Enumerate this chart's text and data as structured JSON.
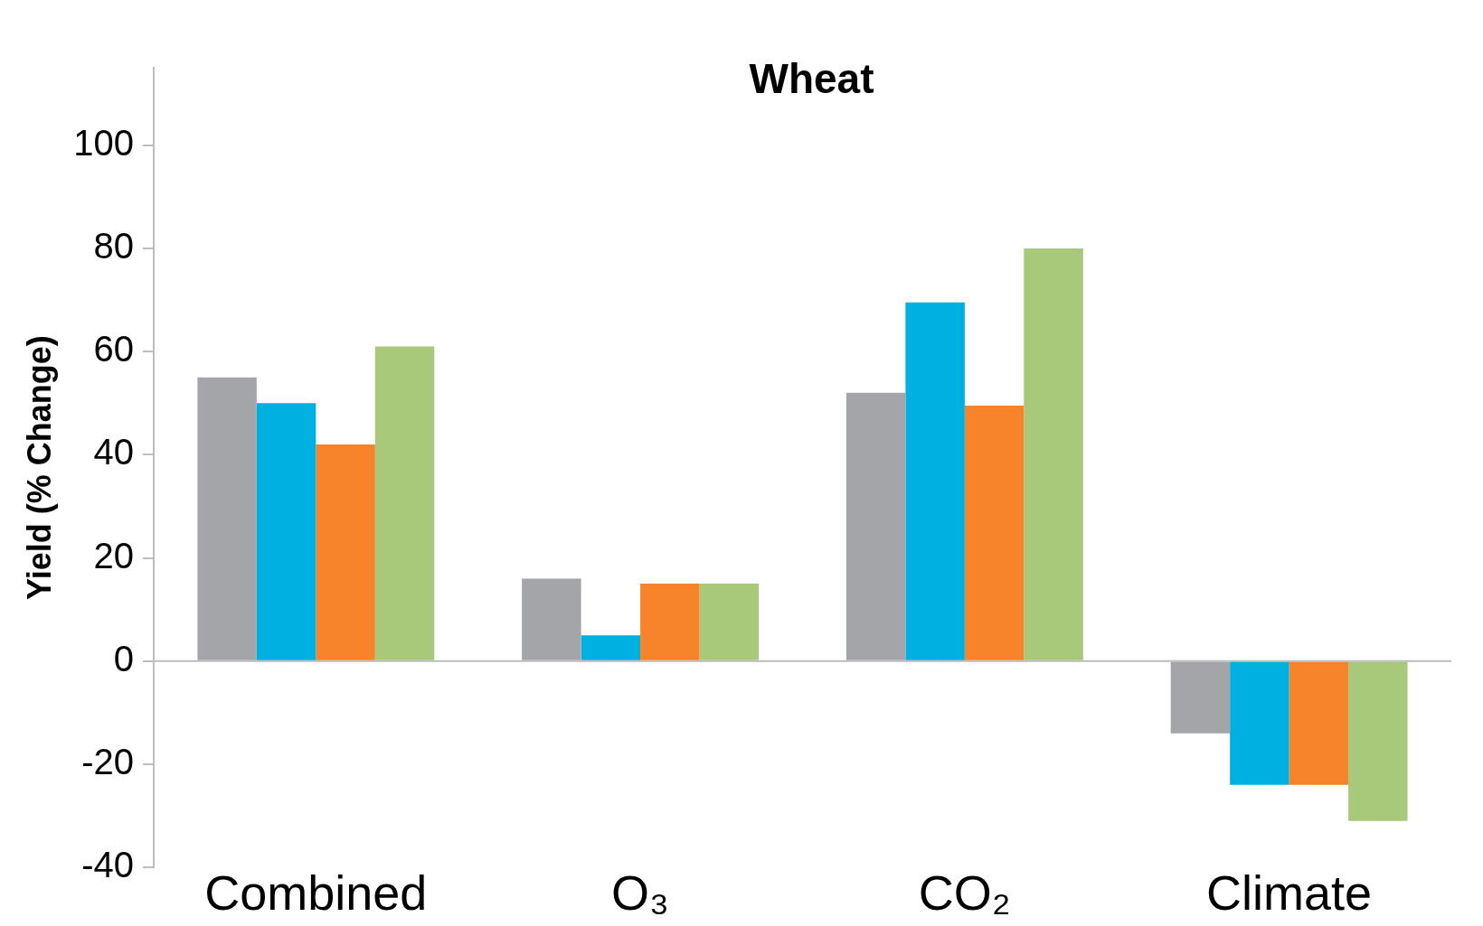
{
  "chart_data": {
    "type": "bar",
    "title": "Wheat",
    "ylabel": "Yield (% Change)",
    "categories": [
      "Combined",
      "O₃",
      "CO₂",
      "Climate"
    ],
    "series": [
      {
        "color": "#a3a5a9",
        "values": [
          55,
          16,
          52,
          -14
        ]
      },
      {
        "color": "#00b0e0",
        "values": [
          50,
          5,
          69.5,
          -24
        ]
      },
      {
        "color": "#f7842a",
        "values": [
          42,
          15,
          49.5,
          -24
        ]
      },
      {
        "color": "#a8c97a",
        "values": [
          61,
          15,
          80,
          -31
        ]
      }
    ],
    "ref_lines": [
      {
        "axis": "y",
        "value": 0,
        "color": "#bdbdbd"
      }
    ],
    "ylim": [
      -40,
      115
    ],
    "yticks": [
      -40,
      -20,
      0,
      20,
      40,
      60,
      80,
      100
    ],
    "grid": false,
    "legend": false
  }
}
